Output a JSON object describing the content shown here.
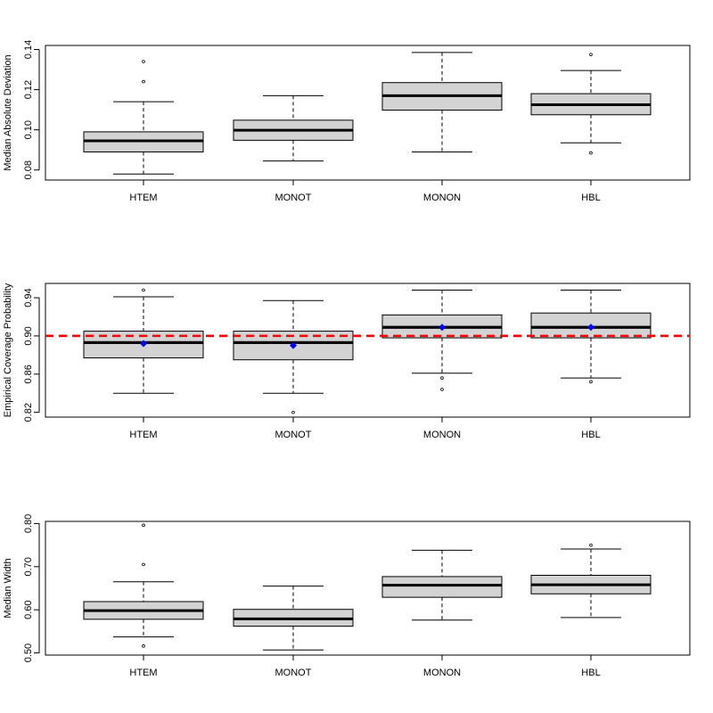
{
  "chart_data": [
    {
      "type": "boxplot",
      "title": "",
      "xlabel": "",
      "ylabel": "Median Absolute Deviation",
      "ylim": [
        0.075,
        0.142
      ],
      "yticks": [
        0.08,
        0.1,
        0.12,
        0.14
      ],
      "ytick_labels": [
        "0.08",
        "0.10",
        "0.12",
        "0.14"
      ],
      "categories": [
        "HTEM",
        "MONOT",
        "MONON",
        "HBL"
      ],
      "boxes": [
        {
          "whisker_low": 0.078,
          "q1": 0.089,
          "median": 0.0945,
          "q3": 0.099,
          "whisker_high": 0.114,
          "outliers": [
            0.124,
            0.134
          ]
        },
        {
          "whisker_low": 0.0845,
          "q1": 0.0948,
          "median": 0.0998,
          "q3": 0.1048,
          "whisker_high": 0.117,
          "outliers": []
        },
        {
          "whisker_low": 0.089,
          "q1": 0.1098,
          "median": 0.117,
          "q3": 0.1235,
          "whisker_high": 0.1385,
          "outliers": []
        },
        {
          "whisker_low": 0.0935,
          "q1": 0.1075,
          "median": 0.1125,
          "q3": 0.118,
          "whisker_high": 0.1295,
          "outliers": [
            0.0885,
            0.1375
          ]
        }
      ]
    },
    {
      "type": "boxplot",
      "title": "",
      "xlabel": "",
      "ylabel": "Empirical Coverage Probability",
      "ylim": [
        0.815,
        0.955
      ],
      "yticks": [
        0.82,
        0.86,
        0.9,
        0.94
      ],
      "ytick_labels": [
        "0.82",
        "0.86",
        "0.90",
        "0.94"
      ],
      "categories": [
        "HTEM",
        "MONOT",
        "MONON",
        "HBL"
      ],
      "reference_line": 0.9,
      "reference_color": "#ff0000",
      "mean_marker_color": "#0000ff",
      "boxes": [
        {
          "whisker_low": 0.84,
          "q1": 0.877,
          "median": 0.893,
          "q3": 0.905,
          "whisker_high": 0.941,
          "outliers": [
            0.948
          ],
          "mean": 0.892
        },
        {
          "whisker_low": 0.84,
          "q1": 0.875,
          "median": 0.893,
          "q3": 0.905,
          "whisker_high": 0.937,
          "outliers": [
            0.82
          ],
          "mean": 0.89
        },
        {
          "whisker_low": 0.861,
          "q1": 0.898,
          "median": 0.909,
          "q3": 0.922,
          "whisker_high": 0.948,
          "outliers": [
            0.844,
            0.856
          ],
          "mean": 0.909
        },
        {
          "whisker_low": 0.856,
          "q1": 0.898,
          "median": 0.909,
          "q3": 0.924,
          "whisker_high": 0.948,
          "outliers": [
            0.852
          ],
          "mean": 0.909
        }
      ]
    },
    {
      "type": "boxplot",
      "title": "",
      "xlabel": "",
      "ylabel": "Median Width",
      "ylim": [
        0.495,
        0.805
      ],
      "yticks": [
        0.5,
        0.6,
        0.7,
        0.8
      ],
      "ytick_labels": [
        "0.50",
        "0.60",
        "0.70",
        "0.80"
      ],
      "categories": [
        "HTEM",
        "MONOT",
        "MONON",
        "HBL"
      ],
      "boxes": [
        {
          "whisker_low": 0.537,
          "q1": 0.578,
          "median": 0.598,
          "q3": 0.619,
          "whisker_high": 0.665,
          "outliers": [
            0.516,
            0.705,
            0.796
          ]
        },
        {
          "whisker_low": 0.507,
          "q1": 0.562,
          "median": 0.579,
          "q3": 0.601,
          "whisker_high": 0.655,
          "outliers": []
        },
        {
          "whisker_low": 0.576,
          "q1": 0.629,
          "median": 0.657,
          "q3": 0.677,
          "whisker_high": 0.738,
          "outliers": []
        },
        {
          "whisker_low": 0.582,
          "q1": 0.637,
          "median": 0.658,
          "q3": 0.68,
          "whisker_high": 0.741,
          "outliers": [
            0.75
          ]
        }
      ]
    }
  ],
  "style": {
    "box_fill": "#d3d3d3",
    "line_color": "#000000"
  }
}
